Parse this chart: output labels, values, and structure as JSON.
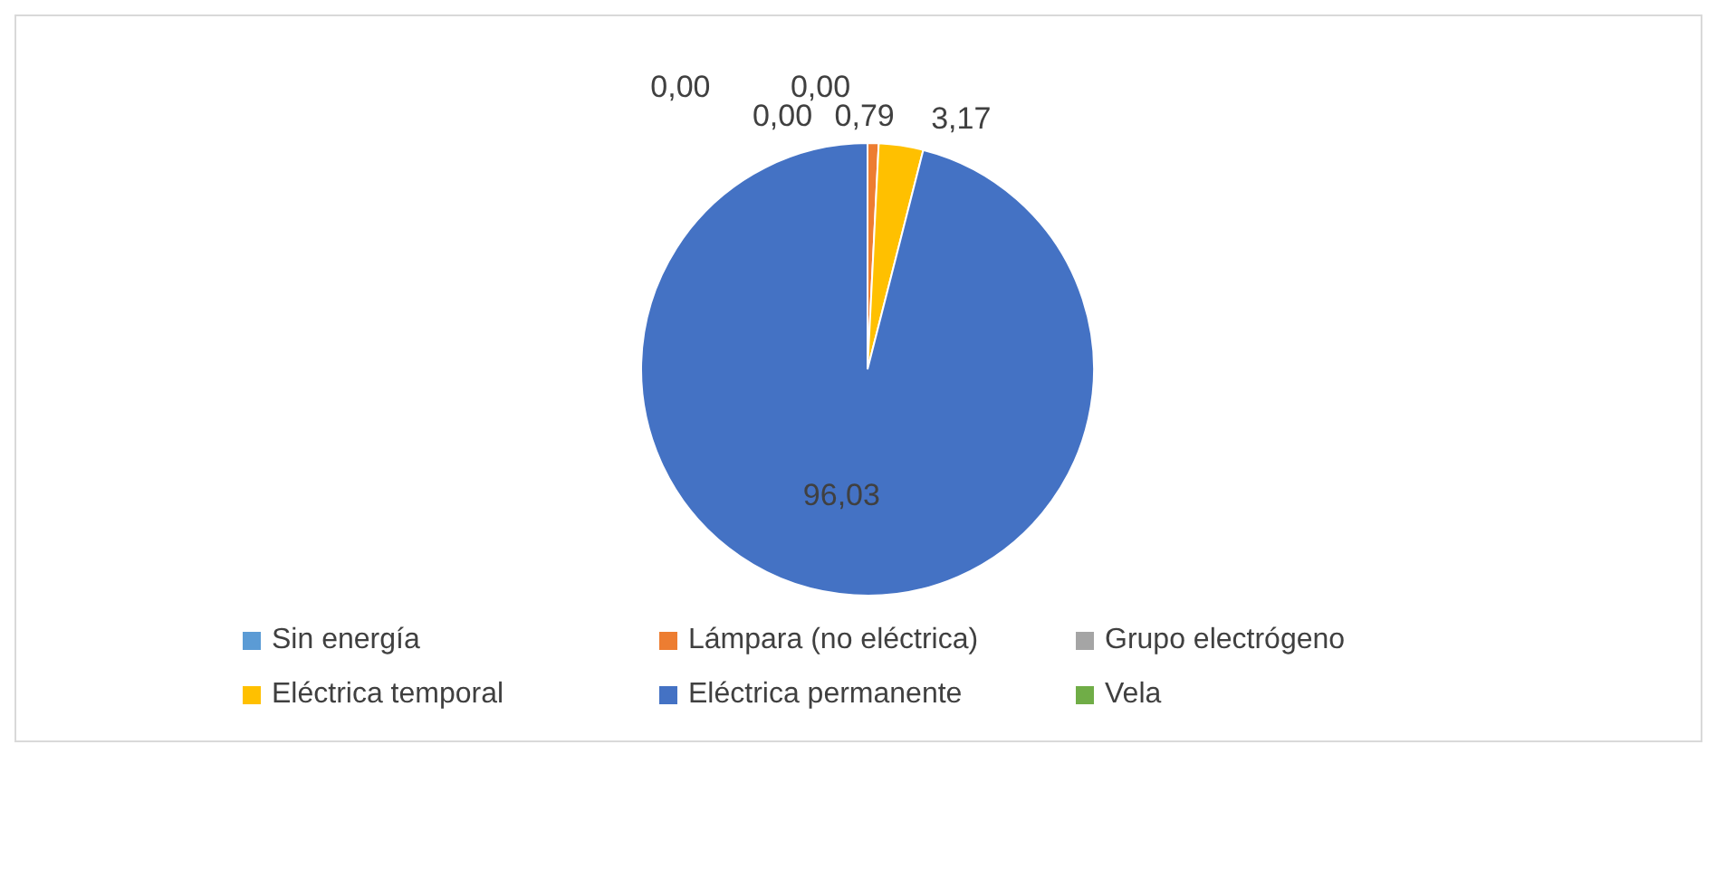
{
  "chart_data": {
    "type": "pie",
    "categories": [
      "Sin energía",
      "Lámpara (no eléctrica)",
      "Grupo electrógeno",
      "Eléctrica temporal",
      "Eléctrica permanente",
      "Vela"
    ],
    "values": [
      0.0,
      0.79,
      0.0,
      3.17,
      96.03,
      0.0
    ],
    "colors": [
      "#5b9bd5",
      "#ed7d31",
      "#a5a5a5",
      "#ffc000",
      "#4472c4",
      "#70ad47"
    ],
    "value_labels": [
      "0,00",
      "0,79",
      "0,00",
      "3,17",
      "96,03",
      "0,00"
    ],
    "legend": "bottom"
  }
}
